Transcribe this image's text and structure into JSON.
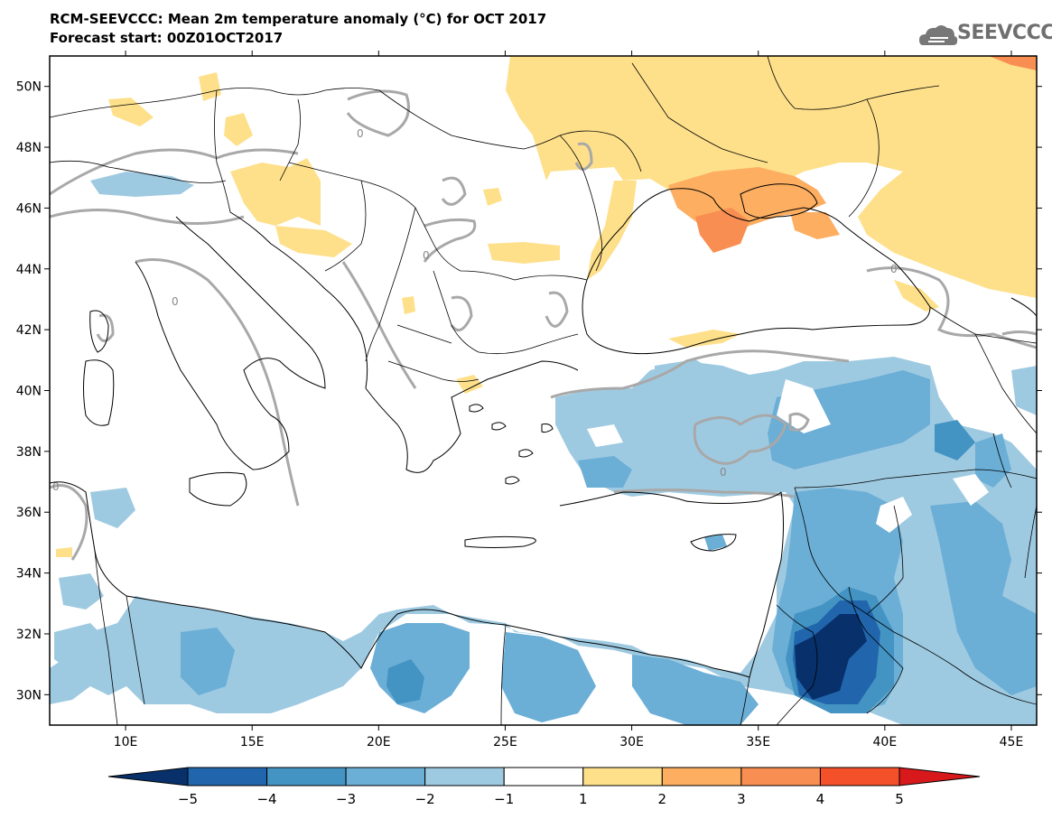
{
  "header": {
    "title": "RCM-SEEVCCC: Mean 2m temperature anomaly (°C) for OCT 2017",
    "subtitle": "Forecast start: 00Z01OCT2017",
    "logo_text": "SEEVCCC"
  },
  "map": {
    "lon_range": [
      7,
      46
    ],
    "lat_range": [
      29,
      51
    ],
    "lat_ticks": [
      "50N",
      "48N",
      "46N",
      "44N",
      "42N",
      "40N",
      "38N",
      "36N",
      "34N",
      "32N",
      "30N"
    ],
    "lat_values": [
      50,
      48,
      46,
      44,
      42,
      40,
      38,
      36,
      34,
      32,
      30
    ],
    "lon_ticks": [
      "10E",
      "15E",
      "20E",
      "25E",
      "30E",
      "35E",
      "40E",
      "45E"
    ],
    "lon_values": [
      10,
      15,
      20,
      25,
      30,
      35,
      40,
      45
    ],
    "contour_label": "0"
  },
  "colorbar": {
    "labels": [
      "−5",
      "−4",
      "−3",
      "−2",
      "−1",
      "1",
      "2",
      "3",
      "4",
      "5"
    ],
    "colors": [
      "#08306b",
      "#2166ac",
      "#4393c3",
      "#6baed6",
      "#9ecae1",
      "#ffffff",
      "#fee08b",
      "#fdae61",
      "#f98e52",
      "#f4502a",
      "#d7191c"
    ],
    "low_color": "#08306b",
    "high_color": "#d7191c"
  }
}
